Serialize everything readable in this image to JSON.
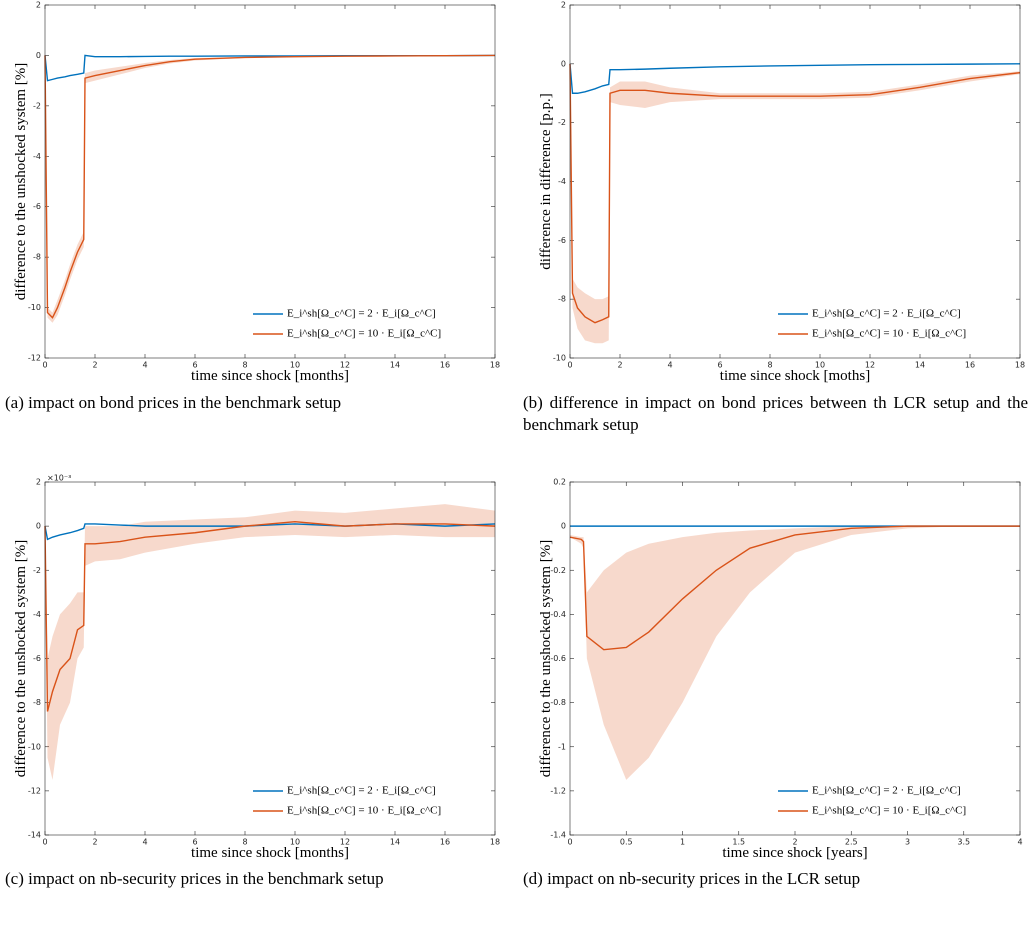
{
  "chart_data": [
    {
      "type": "line",
      "caption": "(a) impact on bond prices in the benchmark setup",
      "xlabel": "time since shock [months]",
      "ylabel": "difference to the unshocked system [%]",
      "x": [
        0,
        0.1,
        0.3,
        0.5,
        0.8,
        1.0,
        1.3,
        1.55,
        1.6,
        2,
        3,
        4,
        5,
        6,
        8,
        10,
        12,
        14,
        16,
        18
      ],
      "xlim": [
        0,
        18
      ],
      "xticks": [
        0,
        2,
        4,
        6,
        8,
        10,
        12,
        14,
        16,
        18
      ],
      "ylim": [
        -12,
        2
      ],
      "yticks": [
        2,
        0,
        -2,
        -4,
        -6,
        -8,
        -10,
        -12
      ],
      "series": [
        {
          "name": "E_i^sh[Ω_c^C] = 2 · E_i[Ω_c^C]",
          "color": "#0072bd",
          "values": [
            0,
            -1.0,
            -0.95,
            -0.9,
            -0.85,
            -0.8,
            -0.75,
            -0.7,
            0,
            -0.05,
            -0.05,
            -0.04,
            -0.03,
            -0.03,
            -0.02,
            -0.02,
            -0.01,
            -0.01,
            -0.01,
            0
          ]
        },
        {
          "name": "E_i^sh[Ω_c^C] = 10 · E_i[Ω_c^C]",
          "color": "#d95319",
          "values": [
            0,
            -10.2,
            -10.4,
            -10,
            -9.2,
            -8.6,
            -7.8,
            -7.3,
            -0.9,
            -0.8,
            -0.6,
            -0.4,
            -0.25,
            -0.15,
            -0.08,
            -0.05,
            -0.03,
            -0.02,
            -0.01,
            0
          ],
          "lower": [
            0,
            -10.4,
            -10.6,
            -10.3,
            -9.5,
            -8.9,
            -8.1,
            -7.6,
            -1.1,
            -1.0,
            -0.75,
            -0.5,
            -0.32,
            -0.2,
            -0.1,
            -0.07,
            -0.04,
            -0.03,
            -0.02,
            0
          ],
          "upper": [
            0,
            -10.0,
            -10.2,
            -9.7,
            -8.9,
            -8.3,
            -7.5,
            -7.0,
            -0.7,
            -0.6,
            -0.45,
            -0.3,
            -0.18,
            -0.1,
            -0.06,
            -0.03,
            -0.02,
            -0.01,
            0,
            0
          ]
        }
      ]
    },
    {
      "type": "line",
      "caption": "(b) difference in impact on bond prices between th LCR setup and the benchmark setup",
      "xlabel": "time since shock [moths]",
      "ylabel": "difference in difference [p.p.]",
      "x": [
        0,
        0.1,
        0.3,
        0.6,
        1,
        1.3,
        1.55,
        1.6,
        2,
        3,
        4,
        6,
        8,
        10,
        12,
        14,
        16,
        18
      ],
      "xlim": [
        0,
        18
      ],
      "xticks": [
        0,
        2,
        4,
        6,
        8,
        10,
        12,
        14,
        16,
        18
      ],
      "ylim": [
        -10,
        2
      ],
      "yticks": [
        2,
        0,
        -2,
        -4,
        -6,
        -8,
        -10
      ],
      "series": [
        {
          "name": "E_i^sh[Ω_c^C] = 2 · E_i[Ω_c^C]",
          "color": "#0072bd",
          "values": [
            0,
            -1,
            -1,
            -0.95,
            -0.85,
            -0.75,
            -0.7,
            -0.2,
            -0.2,
            -0.18,
            -0.15,
            -0.1,
            -0.07,
            -0.05,
            -0.03,
            -0.02,
            -0.01,
            0
          ]
        },
        {
          "name": "E_i^sh[Ω_c^C] = 10 · E_i[Ω_c^C]",
          "color": "#d95319",
          "values": [
            0,
            -7.8,
            -8.3,
            -8.6,
            -8.8,
            -8.7,
            -8.6,
            -1,
            -0.9,
            -0.9,
            -1,
            -1.1,
            -1.1,
            -1.1,
            -1.05,
            -0.8,
            -0.5,
            -0.3
          ],
          "lower": [
            0,
            -8.3,
            -9,
            -9.4,
            -9.5,
            -9.5,
            -9.4,
            -1.3,
            -1.4,
            -1.5,
            -1.3,
            -1.2,
            -1.2,
            -1.2,
            -1.15,
            -0.9,
            -0.6,
            -0.35
          ],
          "upper": [
            0,
            -7.3,
            -7.6,
            -7.8,
            -8,
            -8,
            -7.9,
            -0.8,
            -0.6,
            -0.6,
            -0.8,
            -1,
            -1,
            -1,
            -0.95,
            -0.7,
            -0.4,
            -0.25
          ]
        }
      ]
    },
    {
      "type": "line",
      "caption": "(c) impact on nb-security prices in the benchmark setup",
      "xlabel": "time since shock [months]",
      "ylabel": "difference to the unshocked system [%]",
      "y_exponent": "×10⁻³",
      "x": [
        0,
        0.1,
        0.3,
        0.6,
        1,
        1.3,
        1.55,
        1.6,
        2,
        3,
        4,
        6,
        8,
        10,
        12,
        14,
        16,
        18
      ],
      "xlim": [
        0,
        18
      ],
      "xticks": [
        0,
        2,
        4,
        6,
        8,
        10,
        12,
        14,
        16,
        18
      ],
      "ylim": [
        -14,
        2
      ],
      "yticks": [
        2,
        0,
        -2,
        -4,
        -6,
        -8,
        -10,
        -12,
        -14
      ],
      "series": [
        {
          "name": "E_i^sh[Ω_c^C] = 2 · E_i[Ω_c^C]",
          "color": "#0072bd",
          "values": [
            0,
            -0.6,
            -0.5,
            -0.4,
            -0.3,
            -0.2,
            -0.1,
            0.1,
            0.1,
            0.05,
            0,
            0,
            0,
            0.1,
            0,
            0.1,
            0,
            0.1
          ]
        },
        {
          "name": "E_i^sh[Ω_c^C] = 10 · E_i[Ω_c^C]",
          "color": "#d95319",
          "values": [
            0,
            -8.4,
            -7.5,
            -6.5,
            -6,
            -4.7,
            -4.5,
            -0.8,
            -0.8,
            -0.7,
            -0.5,
            -0.3,
            0,
            0.2,
            0,
            0.1,
            0.1,
            0
          ],
          "lower": [
            0,
            -10.5,
            -11.5,
            -9,
            -8,
            -6,
            -5.5,
            -1.8,
            -1.6,
            -1.5,
            -1.2,
            -0.8,
            -0.5,
            -0.4,
            -0.5,
            -0.4,
            -0.5,
            -0.5
          ],
          "upper": [
            0,
            -6,
            -5,
            -4,
            -3.5,
            -3,
            -3,
            0,
            0,
            0,
            0.2,
            0.3,
            0.4,
            0.7,
            0.6,
            0.8,
            1,
            0.7
          ]
        }
      ]
    },
    {
      "type": "line",
      "caption": "(d) impact on nb-security prices in the LCR setup",
      "xlabel": "time since shock [years]",
      "ylabel": "difference to the unshocked system [%]",
      "x": [
        0,
        0.1,
        0.12,
        0.15,
        0.3,
        0.5,
        0.7,
        1,
        1.3,
        1.6,
        2,
        2.5,
        3,
        3.5,
        4
      ],
      "xlim": [
        0,
        4
      ],
      "xticks": [
        0,
        0.5,
        1,
        1.5,
        2,
        2.5,
        3,
        3.5,
        4
      ],
      "ylim": [
        -1.4,
        0.2
      ],
      "yticks": [
        0.2,
        0,
        -0.2,
        -0.4,
        -0.6,
        -0.8,
        -1,
        -1.2,
        -1.4
      ],
      "series": [
        {
          "name": "E_i^sh[Ω_c^C] = 2 · E_i[Ω_c^C]",
          "color": "#0072bd",
          "values": [
            0,
            0,
            0,
            0,
            0,
            0,
            0,
            0,
            0,
            0,
            0,
            0,
            0,
            0,
            0
          ]
        },
        {
          "name": "E_i^sh[Ω_c^C] = 10 · E_i[Ω_c^C]",
          "color": "#d95319",
          "values": [
            -0.05,
            -0.06,
            -0.07,
            -0.5,
            -0.56,
            -0.55,
            -0.48,
            -0.33,
            -0.2,
            -0.1,
            -0.04,
            -0.01,
            0,
            0,
            0
          ],
          "lower": [
            -0.05,
            -0.08,
            -0.1,
            -0.6,
            -0.9,
            -1.15,
            -1.05,
            -0.8,
            -0.5,
            -0.3,
            -0.12,
            -0.04,
            -0.01,
            0,
            0
          ],
          "upper": [
            -0.04,
            -0.05,
            -0.05,
            -0.3,
            -0.2,
            -0.12,
            -0.08,
            -0.05,
            -0.03,
            -0.02,
            -0.01,
            0,
            0,
            0,
            0
          ]
        }
      ]
    }
  ]
}
